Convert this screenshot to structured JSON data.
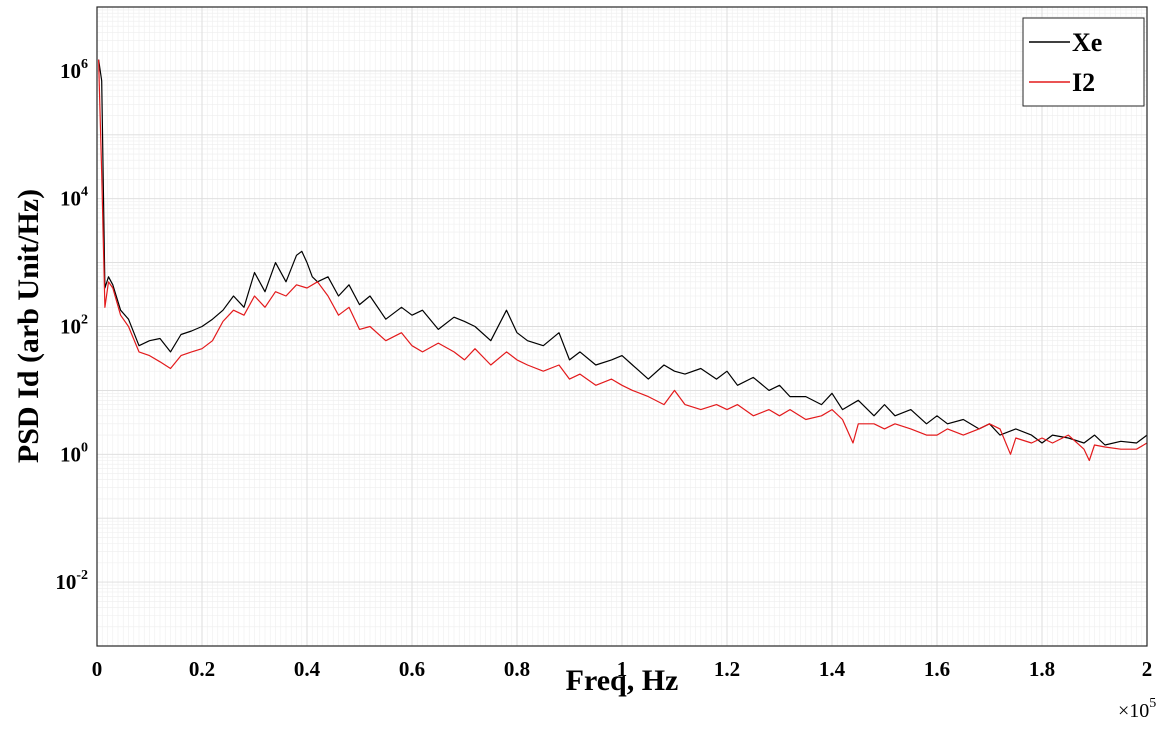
{
  "chart_data": {
    "type": "line",
    "xlabel": "Freq, Hz",
    "ylabel": "PSD Id (arb Unit/Hz)",
    "x_multiplier_label": "×10",
    "x_multiplier_exponent": "5",
    "x_ticks": [
      "0",
      "0.2",
      "0.4",
      "0.6",
      "0.8",
      "1",
      "1.2",
      "1.4",
      "1.6",
      "1.8",
      "2"
    ],
    "x_tick_values": [
      0,
      20000,
      40000,
      60000,
      80000,
      100000,
      120000,
      140000,
      160000,
      180000,
      200000
    ],
    "y_ticks": [
      {
        "base": "10",
        "exp": "-2",
        "value": 0.01
      },
      {
        "base": "10",
        "exp": "0",
        "value": 1
      },
      {
        "base": "10",
        "exp": "2",
        "value": 100
      },
      {
        "base": "10",
        "exp": "4",
        "value": 10000
      },
      {
        "base": "10",
        "exp": "6",
        "value": 1000000
      }
    ],
    "xlim": [
      0,
      200000
    ],
    "ylim": [
      0.001,
      10000000
    ],
    "y_scale": "log",
    "grid": true,
    "legend_position": "top-right",
    "series": [
      {
        "name": "Xe",
        "color": "#000000",
        "x": [
          300,
          900,
          1500,
          2200,
          3000,
          4500,
          6000,
          8000,
          10000,
          12000,
          14000,
          16000,
          18000,
          20000,
          22000,
          24000,
          26000,
          28000,
          30000,
          32000,
          34000,
          36000,
          38000,
          39000,
          40000,
          41000,
          42000,
          44000,
          46000,
          48000,
          50000,
          52000,
          55000,
          58000,
          60000,
          62000,
          65000,
          68000,
          70000,
          72000,
          75000,
          78000,
          80000,
          82000,
          85000,
          88000,
          90000,
          92000,
          95000,
          98000,
          100000,
          102000,
          105000,
          108000,
          110000,
          112000,
          115000,
          118000,
          120000,
          122000,
          125000,
          128000,
          130000,
          132000,
          135000,
          138000,
          140000,
          142000,
          145000,
          148000,
          150000,
          152000,
          155000,
          158000,
          160000,
          162000,
          165000,
          168000,
          170000,
          172000,
          175000,
          178000,
          180000,
          182000,
          185000,
          188000,
          190000,
          192000,
          195000,
          198000,
          200000
        ],
        "y": [
          1500000,
          700000,
          400,
          600,
          450,
          180,
          130,
          50,
          60,
          65,
          40,
          75,
          85,
          100,
          130,
          180,
          300,
          200,
          700,
          350,
          1000,
          500,
          1300,
          1500,
          1000,
          600,
          500,
          600,
          300,
          450,
          220,
          300,
          130,
          200,
          150,
          180,
          90,
          140,
          120,
          100,
          60,
          180,
          80,
          60,
          50,
          80,
          30,
          40,
          25,
          30,
          35,
          25,
          15,
          25,
          20,
          18,
          22,
          15,
          20,
          12,
          16,
          10,
          12,
          8,
          8,
          6,
          9,
          5,
          7,
          4,
          6,
          4,
          5,
          3,
          4,
          3,
          3.5,
          2.5,
          3,
          2,
          2.5,
          2,
          1.5,
          2,
          1.8,
          1.5,
          2,
          1.4,
          1.6,
          1.5,
          2
        ]
      },
      {
        "name": "I2",
        "color": "#e31a1c",
        "x": [
          300,
          900,
          1500,
          2200,
          3000,
          4500,
          6000,
          8000,
          10000,
          12000,
          14000,
          16000,
          18000,
          20000,
          22000,
          24000,
          26000,
          28000,
          30000,
          32000,
          34000,
          36000,
          38000,
          40000,
          42000,
          44000,
          46000,
          48000,
          50000,
          52000,
          55000,
          58000,
          60000,
          62000,
          65000,
          68000,
          70000,
          72000,
          75000,
          78000,
          80000,
          82000,
          85000,
          88000,
          90000,
          92000,
          95000,
          98000,
          100000,
          102000,
          105000,
          108000,
          110000,
          112000,
          115000,
          118000,
          120000,
          122000,
          125000,
          128000,
          130000,
          132000,
          135000,
          138000,
          140000,
          142000,
          144000,
          145000,
          148000,
          150000,
          152000,
          155000,
          158000,
          160000,
          162000,
          165000,
          168000,
          170000,
          172000,
          174000,
          175000,
          178000,
          180000,
          182000,
          185000,
          188000,
          189000,
          190000,
          192000,
          195000,
          198000,
          200000
        ],
        "y": [
          1500000,
          25000,
          200,
          500,
          400,
          150,
          100,
          40,
          35,
          28,
          22,
          35,
          40,
          45,
          60,
          120,
          180,
          150,
          300,
          200,
          350,
          300,
          450,
          400,
          500,
          300,
          150,
          200,
          90,
          100,
          60,
          80,
          50,
          40,
          55,
          40,
          30,
          45,
          25,
          40,
          30,
          25,
          20,
          25,
          15,
          18,
          12,
          15,
          12,
          10,
          8,
          6,
          10,
          6,
          5,
          6,
          5,
          6,
          4,
          5,
          4,
          5,
          3.5,
          4,
          5,
          3.5,
          1.5,
          3,
          3,
          2.5,
          3,
          2.5,
          2,
          2,
          2.5,
          2,
          2.5,
          3,
          2.5,
          1,
          1.8,
          1.5,
          1.8,
          1.5,
          2,
          1.2,
          0.8,
          1.4,
          1.3,
          1.2,
          1.2,
          1.5
        ]
      }
    ]
  }
}
